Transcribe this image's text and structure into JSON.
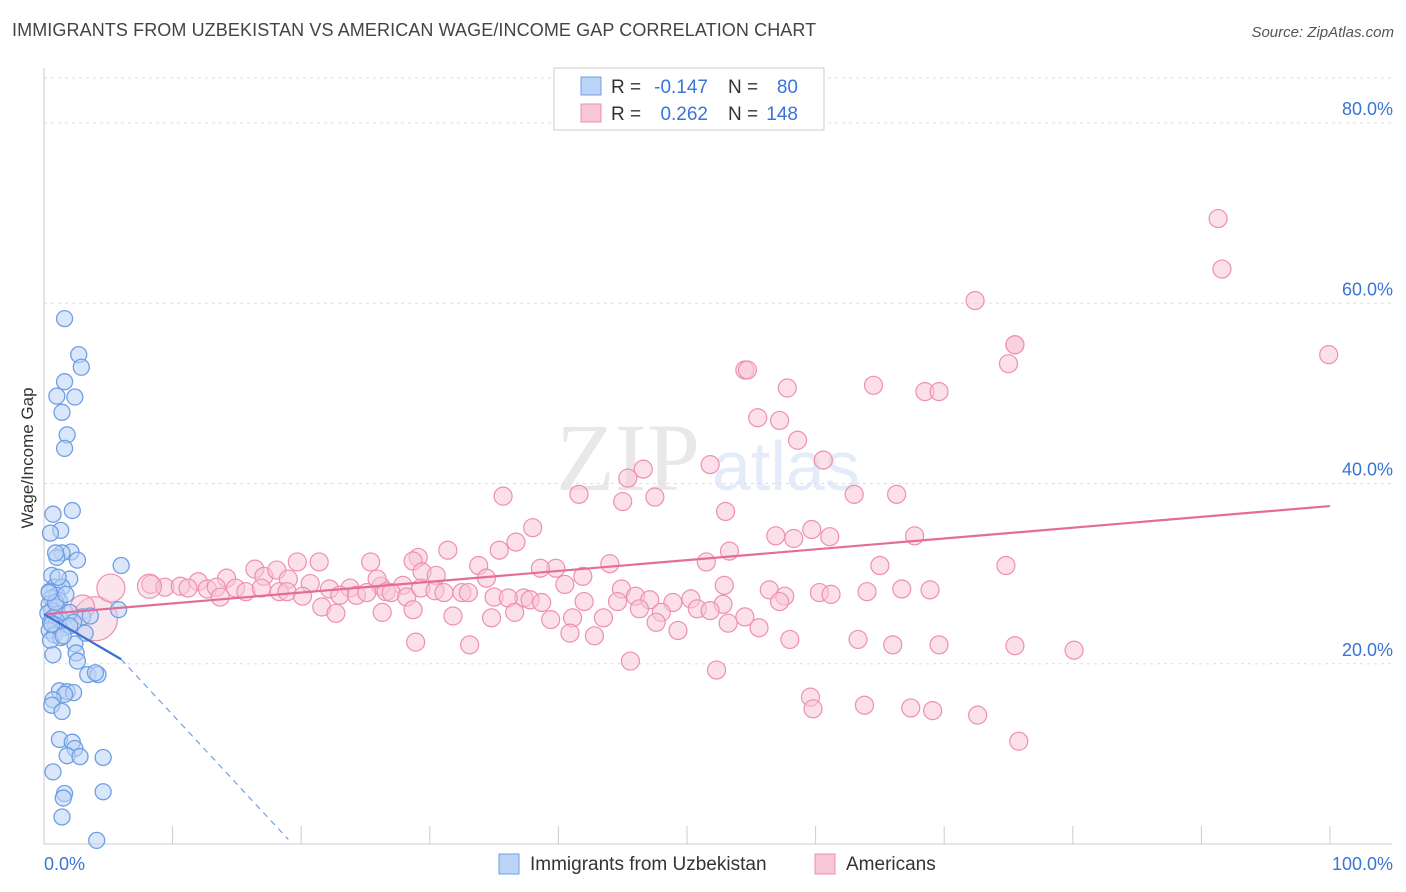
{
  "title": "IMMIGRANTS FROM UZBEKISTAN VS AMERICAN WAGE/INCOME GAP CORRELATION CHART",
  "source": "Source: ZipAtlas.com",
  "watermark": {
    "zip": "ZIP",
    "atlas": "atlas"
  },
  "colors": {
    "blue": "#6f9fe4",
    "blue_fill": "#bcd4f5",
    "blue_line": "#3b6fd1",
    "pink": "#ef8fb0",
    "pink_fill": "#f7c6d7",
    "pink_line": "#e36d97",
    "value_text": "#3a74d4",
    "grid": "#dddddd"
  },
  "legend": {
    "rows": [
      {
        "r_label": "R =",
        "r_value": "-0.147",
        "n_label": "N =",
        "n_value": "80"
      },
      {
        "r_label": "R =",
        "r_value": "0.262",
        "n_label": "N =",
        "n_value": "148"
      }
    ]
  },
  "chart_data": {
    "type": "scatter",
    "title": "IMMIGRANTS FROM UZBEKISTAN VS AMERICAN WAGE/INCOME GAP CORRELATION CHART",
    "xlabel": "",
    "ylabel": "Wage/Income Gap",
    "xlim": [
      0,
      100
    ],
    "ylim": [
      0,
      85
    ],
    "x_tick_labels": [
      {
        "value": 0,
        "label": "0.0%"
      },
      {
        "value": 100,
        "label": "100.0%"
      }
    ],
    "y_tick_labels": [
      {
        "value": 20,
        "label": "20.0%"
      },
      {
        "value": 40,
        "label": "40.0%"
      },
      {
        "value": 60,
        "label": "60.0%"
      },
      {
        "value": 80,
        "label": "80.0%"
      }
    ],
    "grid": true,
    "legend_position": "top-center",
    "series": [
      {
        "name": "Immigrants from Uzbekistan",
        "r": -0.147,
        "n": 80,
        "trend": {
          "x0": 0,
          "y0": 25.5,
          "x1": 6,
          "y1": 20.5,
          "dash_to_x": 19,
          "dash_to_y": 0.5
        },
        "points": [
          [
            1.6,
            58.3
          ],
          [
            2.7,
            54.3
          ],
          [
            2.9,
            52.9
          ],
          [
            1.6,
            51.3
          ],
          [
            1.0,
            49.7
          ],
          [
            2.4,
            49.6
          ],
          [
            1.4,
            47.9
          ],
          [
            1.8,
            45.4
          ],
          [
            1.6,
            43.9
          ],
          [
            2.2,
            37.0
          ],
          [
            0.7,
            36.6
          ],
          [
            1.3,
            34.8
          ],
          [
            0.5,
            34.5
          ],
          [
            2.1,
            32.4
          ],
          [
            1.4,
            32.3
          ],
          [
            2.6,
            31.5
          ],
          [
            1.0,
            31.8
          ],
          [
            6.0,
            30.9
          ],
          [
            0.6,
            29.8
          ],
          [
            2.0,
            29.4
          ],
          [
            0.8,
            28.5
          ],
          [
            1.4,
            28.5
          ],
          [
            0.4,
            28.0
          ],
          [
            1.0,
            27.6
          ],
          [
            0.6,
            27.3
          ],
          [
            1.2,
            27.0
          ],
          [
            0.4,
            26.6
          ],
          [
            1.0,
            26.3
          ],
          [
            0.6,
            25.9
          ],
          [
            0.3,
            25.6
          ],
          [
            1.1,
            25.5
          ],
          [
            0.7,
            25.1
          ],
          [
            1.3,
            24.9
          ],
          [
            0.5,
            24.6
          ],
          [
            0.9,
            24.3
          ],
          [
            1.6,
            24.0
          ],
          [
            0.4,
            23.7
          ],
          [
            3.2,
            23.4
          ],
          [
            0.8,
            23.2
          ],
          [
            1.3,
            22.9
          ],
          [
            0.5,
            22.6
          ],
          [
            2.4,
            22.2
          ],
          [
            0.7,
            21.0
          ],
          [
            2.5,
            21.2
          ],
          [
            2.6,
            20.3
          ],
          [
            3.4,
            18.8
          ],
          [
            4.2,
            18.8
          ],
          [
            4.0,
            19.0
          ],
          [
            1.2,
            17.0
          ],
          [
            1.8,
            16.9
          ],
          [
            2.3,
            16.8
          ],
          [
            1.6,
            16.6
          ],
          [
            0.7,
            16.0
          ],
          [
            0.6,
            15.4
          ],
          [
            1.4,
            14.7
          ],
          [
            1.2,
            11.6
          ],
          [
            2.2,
            11.3
          ],
          [
            2.4,
            10.6
          ],
          [
            1.8,
            9.8
          ],
          [
            2.8,
            9.7
          ],
          [
            4.6,
            9.6
          ],
          [
            0.7,
            8.0
          ],
          [
            1.6,
            5.6
          ],
          [
            4.6,
            5.8
          ],
          [
            1.5,
            5.1
          ],
          [
            1.4,
            3.0
          ],
          [
            4.1,
            0.4
          ],
          [
            5.8,
            26.0
          ],
          [
            3.0,
            25.2
          ],
          [
            2.0,
            25.7
          ],
          [
            0.9,
            26.8
          ],
          [
            1.7,
            27.7
          ],
          [
            2.3,
            24.6
          ],
          [
            0.4,
            27.9
          ],
          [
            1.1,
            29.6
          ],
          [
            0.9,
            32.3
          ],
          [
            3.6,
            25.3
          ],
          [
            0.6,
            24.4
          ],
          [
            2.0,
            24.2
          ],
          [
            1.5,
            23.1
          ]
        ]
      },
      {
        "name": "Americans",
        "r": 0.262,
        "n": 148,
        "trend": {
          "x0": 0,
          "y0": 25.5,
          "x1": 100,
          "y1": 37.5
        },
        "points": [
          [
            91.3,
            69.4
          ],
          [
            91.6,
            63.8
          ],
          [
            99.9,
            54.3
          ],
          [
            72.4,
            60.3
          ],
          [
            75.5,
            55.4
          ],
          [
            75.5,
            55.4
          ],
          [
            75.0,
            53.3
          ],
          [
            54.5,
            52.6
          ],
          [
            54.7,
            52.6
          ],
          [
            57.8,
            50.6
          ],
          [
            64.5,
            50.9
          ],
          [
            68.5,
            50.2
          ],
          [
            69.6,
            50.2
          ],
          [
            55.5,
            47.3
          ],
          [
            57.2,
            47.0
          ],
          [
            58.6,
            44.8
          ],
          [
            60.6,
            42.6
          ],
          [
            51.8,
            42.1
          ],
          [
            46.6,
            41.6
          ],
          [
            45.4,
            40.6
          ],
          [
            63.0,
            38.8
          ],
          [
            66.3,
            38.8
          ],
          [
            47.5,
            38.5
          ],
          [
            45.0,
            38.0
          ],
          [
            35.7,
            38.6
          ],
          [
            41.6,
            38.8
          ],
          [
            53.0,
            36.9
          ],
          [
            59.7,
            34.9
          ],
          [
            67.7,
            34.2
          ],
          [
            56.9,
            34.2
          ],
          [
            61.1,
            34.1
          ],
          [
            58.3,
            33.9
          ],
          [
            36.7,
            33.5
          ],
          [
            38.0,
            35.1
          ],
          [
            53.3,
            32.5
          ],
          [
            35.4,
            32.6
          ],
          [
            51.5,
            31.3
          ],
          [
            65.0,
            30.9
          ],
          [
            74.8,
            30.9
          ],
          [
            31.4,
            32.6
          ],
          [
            29.1,
            31.8
          ],
          [
            44.0,
            31.1
          ],
          [
            25.4,
            31.3
          ],
          [
            19.7,
            31.3
          ],
          [
            21.4,
            31.3
          ],
          [
            39.8,
            30.6
          ],
          [
            38.6,
            30.6
          ],
          [
            33.8,
            30.9
          ],
          [
            28.7,
            31.4
          ],
          [
            29.4,
            30.2
          ],
          [
            27.9,
            28.7
          ],
          [
            16.4,
            30.5
          ],
          [
            17.1,
            29.7
          ],
          [
            18.1,
            30.4
          ],
          [
            19.0,
            29.4
          ],
          [
            14.2,
            29.5
          ],
          [
            20.7,
            28.9
          ],
          [
            22.2,
            28.3
          ],
          [
            23.8,
            28.4
          ],
          [
            26.2,
            28.6
          ],
          [
            25.9,
            29.4
          ],
          [
            30.5,
            29.8
          ],
          [
            34.4,
            29.5
          ],
          [
            37.3,
            27.3
          ],
          [
            40.5,
            28.8
          ],
          [
            41.9,
            29.7
          ],
          [
            44.9,
            28.3
          ],
          [
            46.0,
            27.5
          ],
          [
            47.1,
            27.1
          ],
          [
            48.9,
            26.8
          ],
          [
            50.3,
            27.2
          ],
          [
            52.9,
            28.7
          ],
          [
            56.4,
            28.2
          ],
          [
            57.6,
            27.5
          ],
          [
            60.3,
            27.9
          ],
          [
            64.0,
            28.0
          ],
          [
            66.7,
            28.3
          ],
          [
            68.9,
            28.2
          ],
          [
            8.3,
            28.8
          ],
          [
            9.4,
            28.5
          ],
          [
            10.6,
            28.6
          ],
          [
            12.0,
            29.1
          ],
          [
            12.7,
            28.3
          ],
          [
            13.4,
            28.5
          ],
          [
            14.9,
            28.4
          ],
          [
            15.7,
            28.0
          ],
          [
            16.9,
            28.4
          ],
          [
            18.3,
            28.0
          ],
          [
            18.9,
            28.0
          ],
          [
            20.1,
            27.5
          ],
          [
            23.0,
            27.6
          ],
          [
            24.3,
            27.6
          ],
          [
            25.1,
            27.9
          ],
          [
            26.6,
            28.0
          ],
          [
            27.0,
            27.9
          ],
          [
            28.2,
            27.4
          ],
          [
            29.3,
            28.4
          ],
          [
            30.4,
            28.1
          ],
          [
            31.1,
            27.9
          ],
          [
            32.5,
            27.9
          ],
          [
            33.0,
            27.9
          ],
          [
            35.0,
            27.4
          ],
          [
            36.1,
            27.3
          ],
          [
            37.8,
            27.1
          ],
          [
            38.7,
            26.8
          ],
          [
            42.0,
            26.9
          ],
          [
            44.6,
            26.9
          ],
          [
            46.3,
            26.1
          ],
          [
            48.0,
            25.7
          ],
          [
            50.8,
            26.1
          ],
          [
            52.8,
            26.6
          ],
          [
            54.5,
            25.2
          ],
          [
            57.2,
            26.9
          ],
          [
            61.2,
            27.7
          ],
          [
            21.6,
            26.3
          ],
          [
            22.7,
            25.6
          ],
          [
            26.3,
            25.7
          ],
          [
            28.7,
            26.0
          ],
          [
            31.8,
            25.3
          ],
          [
            34.8,
            25.1
          ],
          [
            36.6,
            25.7
          ],
          [
            39.4,
            24.9
          ],
          [
            41.1,
            25.1
          ],
          [
            43.5,
            25.1
          ],
          [
            47.6,
            24.6
          ],
          [
            49.3,
            23.7
          ],
          [
            51.8,
            25.9
          ],
          [
            53.2,
            24.5
          ],
          [
            55.6,
            24.0
          ],
          [
            58.0,
            22.7
          ],
          [
            63.3,
            22.7
          ],
          [
            66.0,
            22.1
          ],
          [
            69.6,
            22.1
          ],
          [
            75.5,
            22.0
          ],
          [
            80.1,
            21.5
          ],
          [
            28.9,
            22.4
          ],
          [
            33.1,
            22.1
          ],
          [
            40.9,
            23.4
          ],
          [
            42.8,
            23.1
          ],
          [
            45.6,
            20.3
          ],
          [
            52.3,
            19.3
          ],
          [
            59.6,
            16.3
          ],
          [
            63.8,
            15.4
          ],
          [
            67.4,
            15.1
          ],
          [
            69.1,
            14.8
          ],
          [
            72.6,
            14.3
          ],
          [
            75.8,
            11.4
          ],
          [
            59.8,
            15.0
          ],
          [
            11.2,
            28.4
          ],
          [
            13.7,
            27.4
          ]
        ]
      }
    ]
  },
  "bottom_legend": {
    "items": [
      {
        "label": "Immigrants from Uzbekistan"
      },
      {
        "label": "Americans"
      }
    ]
  }
}
